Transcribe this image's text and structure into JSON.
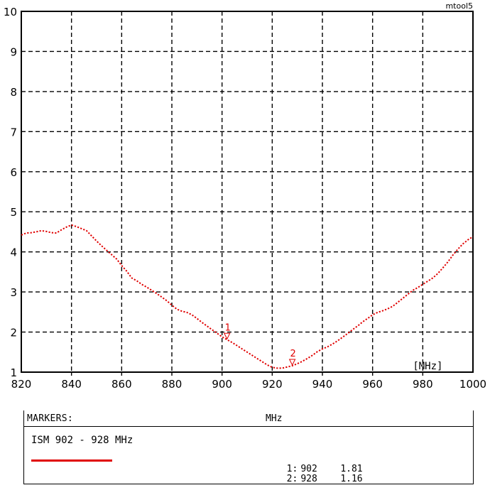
{
  "chart_data": {
    "type": "line",
    "tag": "mtool5",
    "x_unit_label": "[MHz]",
    "xlim": [
      820,
      1000
    ],
    "ylim": [
      1,
      10
    ],
    "x_ticks": [
      820,
      840,
      860,
      880,
      900,
      920,
      940,
      960,
      980,
      1000
    ],
    "y_ticks": [
      1,
      2,
      3,
      4,
      5,
      6,
      7,
      8,
      9,
      10
    ],
    "grid": true,
    "grid_style": "dashed",
    "series": [
      {
        "color": "#e00000",
        "points": [
          [
            820,
            4.42
          ],
          [
            822,
            4.47
          ],
          [
            824,
            4.48
          ],
          [
            826,
            4.5
          ],
          [
            828,
            4.53
          ],
          [
            830,
            4.51
          ],
          [
            832,
            4.48
          ],
          [
            834,
            4.47
          ],
          [
            836,
            4.55
          ],
          [
            838,
            4.62
          ],
          [
            840,
            4.67
          ],
          [
            842,
            4.63
          ],
          [
            844,
            4.58
          ],
          [
            846,
            4.53
          ],
          [
            848,
            4.4
          ],
          [
            850,
            4.27
          ],
          [
            852,
            4.15
          ],
          [
            854,
            4.04
          ],
          [
            856,
            3.93
          ],
          [
            858,
            3.82
          ],
          [
            860,
            3.66
          ],
          [
            862,
            3.52
          ],
          [
            864,
            3.35
          ],
          [
            866,
            3.28
          ],
          [
            868,
            3.19
          ],
          [
            870,
            3.12
          ],
          [
            872,
            3.04
          ],
          [
            874,
            2.96
          ],
          [
            876,
            2.87
          ],
          [
            878,
            2.78
          ],
          [
            880,
            2.67
          ],
          [
            882,
            2.57
          ],
          [
            884,
            2.52
          ],
          [
            886,
            2.49
          ],
          [
            888,
            2.43
          ],
          [
            890,
            2.34
          ],
          [
            892,
            2.24
          ],
          [
            894,
            2.15
          ],
          [
            896,
            2.06
          ],
          [
            898,
            1.97
          ],
          [
            900,
            1.88
          ],
          [
            902,
            1.81
          ],
          [
            904,
            1.74
          ],
          [
            906,
            1.66
          ],
          [
            908,
            1.58
          ],
          [
            910,
            1.5
          ],
          [
            912,
            1.42
          ],
          [
            914,
            1.34
          ],
          [
            916,
            1.26
          ],
          [
            918,
            1.18
          ],
          [
            920,
            1.12
          ],
          [
            922,
            1.1
          ],
          [
            924,
            1.1
          ],
          [
            926,
            1.13
          ],
          [
            928,
            1.16
          ],
          [
            930,
            1.21
          ],
          [
            932,
            1.27
          ],
          [
            934,
            1.34
          ],
          [
            936,
            1.42
          ],
          [
            938,
            1.51
          ],
          [
            940,
            1.58
          ],
          [
            942,
            1.63
          ],
          [
            944,
            1.7
          ],
          [
            946,
            1.78
          ],
          [
            948,
            1.87
          ],
          [
            950,
            1.96
          ],
          [
            952,
            2.06
          ],
          [
            954,
            2.15
          ],
          [
            956,
            2.25
          ],
          [
            958,
            2.34
          ],
          [
            960,
            2.43
          ],
          [
            962,
            2.49
          ],
          [
            964,
            2.53
          ],
          [
            966,
            2.58
          ],
          [
            968,
            2.64
          ],
          [
            970,
            2.74
          ],
          [
            972,
            2.84
          ],
          [
            974,
            2.94
          ],
          [
            976,
            3.04
          ],
          [
            978,
            3.11
          ],
          [
            980,
            3.19
          ],
          [
            982,
            3.27
          ],
          [
            984,
            3.35
          ],
          [
            986,
            3.46
          ],
          [
            988,
            3.6
          ],
          [
            990,
            3.75
          ],
          [
            992,
            3.92
          ],
          [
            994,
            4.07
          ],
          [
            996,
            4.2
          ],
          [
            998,
            4.3
          ],
          [
            1000,
            4.38
          ]
        ]
      }
    ],
    "markers": [
      {
        "id": "1",
        "x": 902,
        "y": 1.81
      },
      {
        "id": "2",
        "x": 928,
        "y": 1.16
      }
    ]
  },
  "panel": {
    "title": "MARKERS:",
    "unit": "MHz",
    "band_label": "ISM 902 - 928 MHz",
    "legend_color": "#e00000",
    "rows": [
      {
        "id": "1:",
        "freq": "902",
        "value": "1.81"
      },
      {
        "id": "2:",
        "freq": "928",
        "value": "1.16"
      }
    ]
  }
}
